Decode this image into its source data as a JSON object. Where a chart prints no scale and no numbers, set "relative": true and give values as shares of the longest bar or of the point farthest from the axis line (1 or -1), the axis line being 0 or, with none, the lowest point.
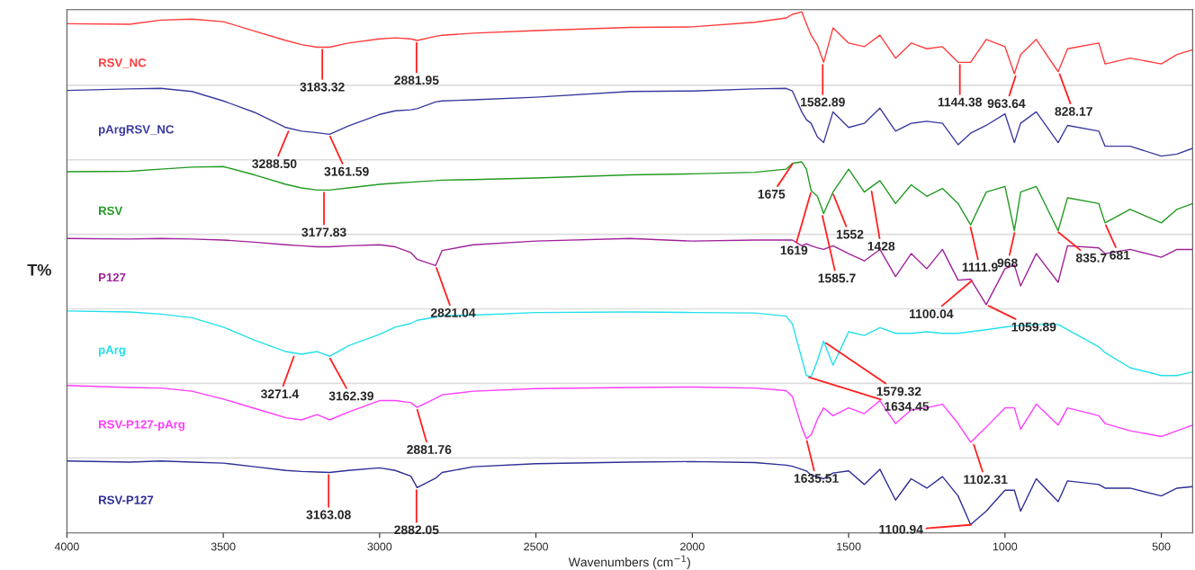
{
  "chart_data": {
    "type": "line",
    "relative": true,
    "xlabel": "Wavenumbers (cm$^{−1}$)",
    "ylabel": "T%",
    "xlim": [
      4000,
      400
    ],
    "xticks": [
      4000,
      3500,
      3000,
      2500,
      2000,
      1500,
      1000,
      500
    ],
    "grid": false,
    "legend": false,
    "marker": "none",
    "line_style": "solid",
    "x": [
      4000,
      3800,
      3700,
      3600,
      3500,
      3400,
      3300,
      3250,
      3200,
      3160,
      3100,
      3000,
      2950,
      2900,
      2880,
      2821,
      2800,
      2700,
      2500,
      2200,
      2000,
      1800,
      1700,
      1680,
      1650,
      1635,
      1620,
      1600,
      1580,
      1550,
      1500,
      1450,
      1400,
      1350,
      1300,
      1250,
      1200,
      1150,
      1110,
      1060,
      1000,
      970,
      950,
      900,
      830,
      800,
      700,
      680,
      600,
      500,
      450,
      400
    ],
    "series": [
      {
        "name": "RSV_NC",
        "color": "#ff3b3b",
        "values": [
          0.977,
          0.976,
          0.984,
          0.986,
          0.981,
          0.963,
          0.945,
          0.937,
          0.932,
          0.932,
          0.94,
          0.948,
          0.95,
          0.948,
          0.945,
          0.953,
          0.955,
          0.959,
          0.964,
          0.97,
          0.971,
          0.98,
          0.988,
          0.995,
          1,
          0.977,
          0.955,
          0.936,
          0.903,
          0.969,
          0.94,
          0.933,
          0.955,
          0.911,
          0.94,
          0.929,
          0.933,
          0.903,
          0.903,
          0.947,
          0.933,
          0.881,
          0.918,
          0.947,
          0.885,
          0.929,
          0.94,
          0.9,
          0.911,
          0.9,
          0.918,
          0.927
        ]
      },
      {
        "name": "pArgRSV_NC",
        "color": "#3a3aa0",
        "values": [
          0.849,
          0.852,
          0.853,
          0.847,
          0.829,
          0.807,
          0.778,
          0.771,
          0.768,
          0.765,
          0.781,
          0.803,
          0.81,
          0.812,
          0.814,
          0.827,
          0.829,
          0.831,
          0.836,
          0.847,
          0.848,
          0.852,
          0.853,
          0.848,
          0.808,
          0.793,
          0.786,
          0.76,
          0.749,
          0.808,
          0.778,
          0.786,
          0.815,
          0.771,
          0.786,
          0.79,
          0.786,
          0.745,
          0.767,
          0.782,
          0.804,
          0.749,
          0.786,
          0.808,
          0.749,
          0.782,
          0.771,
          0.742,
          0.742,
          0.723,
          0.727,
          0.738
        ]
      },
      {
        "name": "RSV",
        "color": "#229a22",
        "values": [
          0.693,
          0.694,
          0.698,
          0.702,
          0.703,
          0.687,
          0.669,
          0.662,
          0.658,
          0.658,
          0.662,
          0.669,
          0.671,
          0.673,
          0.674,
          0.676,
          0.677,
          0.678,
          0.681,
          0.687,
          0.689,
          0.692,
          0.698,
          0.709,
          0.712,
          0.698,
          0.657,
          0.646,
          0.613,
          0.654,
          0.698,
          0.654,
          0.676,
          0.632,
          0.668,
          0.646,
          0.661,
          0.632,
          0.591,
          0.654,
          0.665,
          0.58,
          0.654,
          0.665,
          0.58,
          0.643,
          0.632,
          0.595,
          0.621,
          0.595,
          0.621,
          0.632
        ]
      },
      {
        "name": "P127",
        "color": "#a0229a",
        "values": [
          0.565,
          0.564,
          0.565,
          0.564,
          0.562,
          0.558,
          0.553,
          0.551,
          0.549,
          0.549,
          0.551,
          0.553,
          0.549,
          0.538,
          0.525,
          0.513,
          0.542,
          0.553,
          0.56,
          0.565,
          0.56,
          0.562,
          0.562,
          0.562,
          0.551,
          0.555,
          0.551,
          0.547,
          0.544,
          0.551,
          0.536,
          0.522,
          0.544,
          0.492,
          0.536,
          0.507,
          0.544,
          0.485,
          0.487,
          0.438,
          0.507,
          0.514,
          0.474,
          0.536,
          0.481,
          0.551,
          0.547,
          0.536,
          0.544,
          0.529,
          0.544,
          0.544
        ]
      },
      {
        "name": "pArg",
        "color": "#22e0ea",
        "values": [
          0.426,
          0.424,
          0.42,
          0.413,
          0.395,
          0.37,
          0.348,
          0.343,
          0.348,
          0.339,
          0.359,
          0.381,
          0.395,
          0.402,
          0.408,
          0.414,
          0.417,
          0.418,
          0.423,
          0.424,
          0.423,
          0.422,
          0.416,
          0.401,
          0.335,
          0.302,
          0.3,
          0.331,
          0.368,
          0.322,
          0.386,
          0.379,
          0.394,
          0.383,
          0.383,
          0.386,
          0.383,
          0.383,
          0.386,
          0.39,
          0.395,
          0.397,
          0.398,
          0.4,
          0.4,
          0.39,
          0.357,
          0.346,
          0.317,
          0.302,
          0.302,
          0.309
        ]
      },
      {
        "name": "RSV-P127-pArg",
        "color": "#ff3cff",
        "values": [
          0.283,
          0.279,
          0.278,
          0.272,
          0.257,
          0.239,
          0.221,
          0.217,
          0.227,
          0.217,
          0.232,
          0.254,
          0.254,
          0.25,
          0.241,
          0.258,
          0.265,
          0.272,
          0.277,
          0.279,
          0.28,
          0.278,
          0.273,
          0.262,
          0.203,
          0.181,
          0.188,
          0.218,
          0.24,
          0.225,
          0.24,
          0.229,
          0.254,
          0.21,
          0.236,
          0.24,
          0.247,
          0.21,
          0.174,
          0.203,
          0.24,
          0.24,
          0.199,
          0.247,
          0.207,
          0.24,
          0.225,
          0.21,
          0.196,
          0.185,
          0.196,
          0.207
        ]
      },
      {
        "name": "RSV-P127",
        "color": "#2e2e96",
        "values": [
          0.138,
          0.136,
          0.138,
          0.136,
          0.134,
          0.127,
          0.12,
          0.118,
          0.117,
          0.116,
          0.12,
          0.125,
          0.12,
          0.109,
          0.087,
          0.105,
          0.116,
          0.127,
          0.133,
          0.136,
          0.137,
          0.135,
          0.13,
          0.128,
          0.122,
          0.119,
          0.111,
          0.108,
          0.104,
          0.115,
          0.119,
          0.093,
          0.122,
          0.063,
          0.104,
          0.086,
          0.108,
          0.071,
          0.016,
          0.042,
          0.082,
          0.082,
          0.042,
          0.104,
          0.06,
          0.1,
          0.093,
          0.086,
          0.086,
          0.071,
          0.086,
          0.089
        ]
      }
    ],
    "ref_lines": [
      {
        "axis": "y",
        "value": 0.859,
        "color": "#dddddd"
      },
      {
        "axis": "y",
        "value": 0.716,
        "color": "#dddddd"
      },
      {
        "axis": "y",
        "value": 0.573,
        "color": "#dddddd"
      },
      {
        "axis": "y",
        "value": 0.43,
        "color": "#dddddd"
      },
      {
        "axis": "y",
        "value": 0.287,
        "color": "#dddddd"
      },
      {
        "axis": "y",
        "value": 0.144,
        "color": "#dddddd"
      }
    ],
    "annotations": [
      {
        "text": "3183.32",
        "x": 3183.32,
        "y": 0.932
      },
      {
        "text": "2881.95",
        "x": 2881.95,
        "y": 0.945
      },
      {
        "text": "1582.89",
        "x": 1582.89,
        "y": 0.903
      },
      {
        "text": "1144.38",
        "x": 1144.38,
        "y": 0.903
      },
      {
        "text": "963.64",
        "x": 963.64,
        "y": 0.881
      },
      {
        "text": "828.17",
        "x": 828.17,
        "y": 0.885
      },
      {
        "text": "3288.50",
        "x": 3288.5,
        "y": 0.775
      },
      {
        "text": "3161.59",
        "x": 3161.59,
        "y": 0.765
      },
      {
        "text": "3177.83",
        "x": 3177.83,
        "y": 0.658
      },
      {
        "text": "1675",
        "x": 1675,
        "y": 0.712
      },
      {
        "text": "1619",
        "x": 1619,
        "y": 0.657
      },
      {
        "text": "1585.7",
        "x": 1585.7,
        "y": 0.613
      },
      {
        "text": "1552",
        "x": 1552,
        "y": 0.654
      },
      {
        "text": "1428",
        "x": 1428,
        "y": 0.66
      },
      {
        "text": "1111.9",
        "x": 1111.9,
        "y": 0.591
      },
      {
        "text": "968",
        "x": 968,
        "y": 0.58
      },
      {
        "text": "835.7",
        "x": 835.7,
        "y": 0.58
      },
      {
        "text": "681",
        "x": 681,
        "y": 0.595
      },
      {
        "text": "2821.04",
        "x": 2821.04,
        "y": 0.513
      },
      {
        "text": "1100.04",
        "x": 1100.04,
        "y": 0.487
      },
      {
        "text": "1059.89",
        "x": 1059.89,
        "y": 0.438
      },
      {
        "text": "3271.4",
        "x": 3271.4,
        "y": 0.343
      },
      {
        "text": "3162.39",
        "x": 3162.39,
        "y": 0.339
      },
      {
        "text": "1634.45",
        "x": 1634.45,
        "y": 0.3
      },
      {
        "text": "1579.32",
        "x": 1579.32,
        "y": 0.367
      },
      {
        "text": "2881.76",
        "x": 2881.76,
        "y": 0.241
      },
      {
        "text": "1635.51",
        "x": 1635.51,
        "y": 0.181
      },
      {
        "text": "1102.31",
        "x": 1102.31,
        "y": 0.174
      },
      {
        "text": "3163.08",
        "x": 3163.08,
        "y": 0.116
      },
      {
        "text": "2882.05",
        "x": 2882.05,
        "y": 0.087
      },
      {
        "text": "1100.94",
        "x": 1100.94,
        "y": 0.016
      }
    ]
  }
}
